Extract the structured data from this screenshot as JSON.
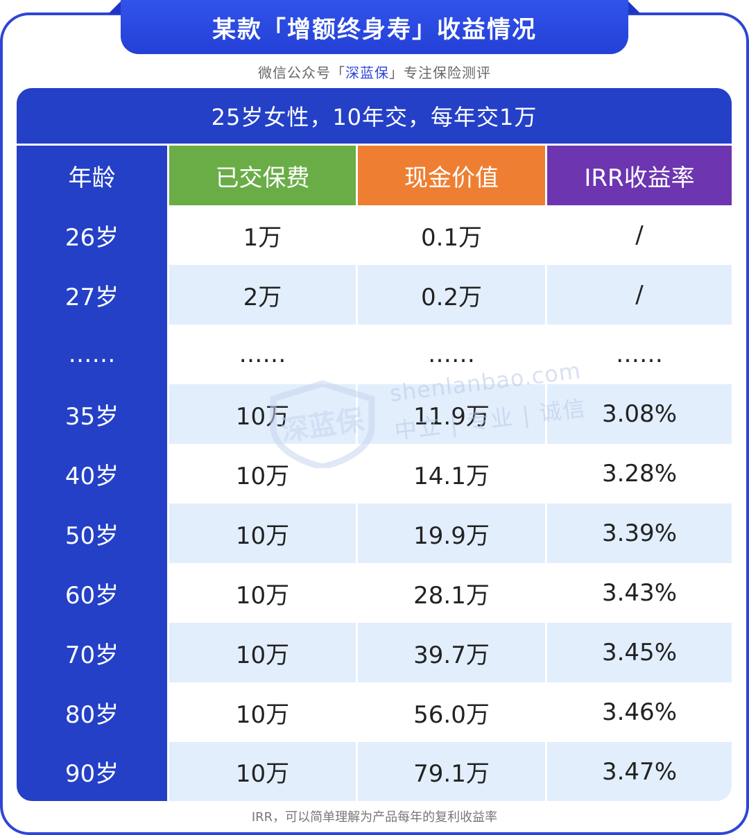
{
  "title": "某款「增额终身寿」收益情况",
  "subtitle": {
    "prefix": "微信公众号「",
    "brand": "深蓝保",
    "suffix": "」专注保险测评"
  },
  "table": {
    "caption": "25岁女性，10年交，每年交1万",
    "headers": [
      "年龄",
      "已交保费",
      "现金价值",
      "IRR收益率"
    ],
    "header_colors": [
      "#2440c7",
      "#6aad47",
      "#ee7f32",
      "#6d35b0"
    ],
    "rows": [
      [
        "26岁",
        "1万",
        "0.1万",
        "/"
      ],
      [
        "27岁",
        "2万",
        "0.2万",
        "/"
      ],
      [
        "……",
        "……",
        "……",
        "……"
      ],
      [
        "35岁",
        "10万",
        "11.9万",
        "3.08%"
      ],
      [
        "40岁",
        "10万",
        "14.1万",
        "3.28%"
      ],
      [
        "50岁",
        "10万",
        "19.9万",
        "3.39%"
      ],
      [
        "60岁",
        "10万",
        "28.1万",
        "3.43%"
      ],
      [
        "70岁",
        "10万",
        "39.7万",
        "3.45%"
      ],
      [
        "80岁",
        "10万",
        "56.0万",
        "3.46%"
      ],
      [
        "90岁",
        "10万",
        "79.1万",
        "3.47%"
      ]
    ]
  },
  "watermark": {
    "logo_text": "深蓝保",
    "site": "shenlanbao.com",
    "slogan": "中立 | 专业 | 诚信"
  },
  "footnote": "IRR，可以简单理解为产品每年的复利收益率",
  "colors": {
    "primary": "#2440c7",
    "row_alt": "#e2eefc"
  }
}
